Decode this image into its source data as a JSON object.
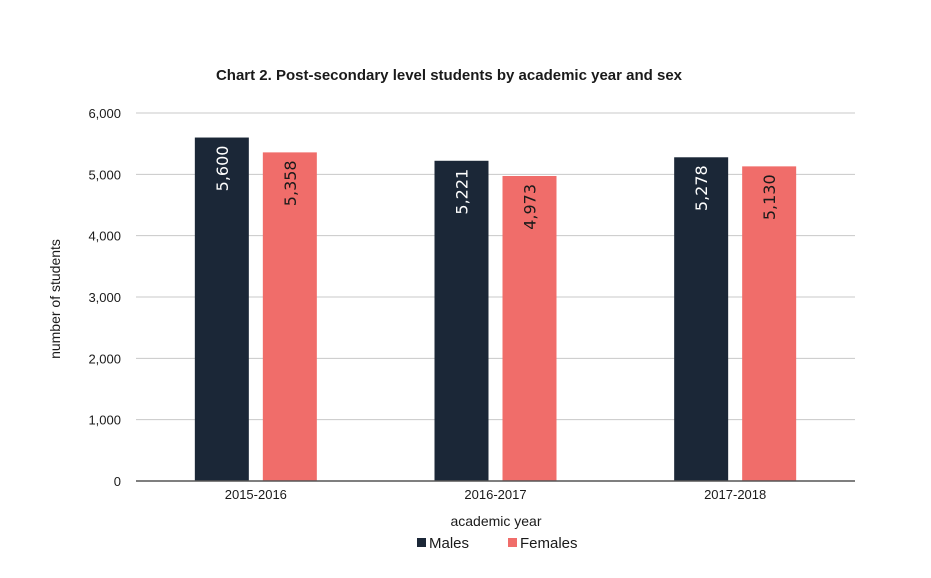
{
  "chart_data": {
    "type": "bar",
    "title": "Chart 2. Post-secondary level students by academic year and sex",
    "xlabel": "academic year",
    "ylabel": "number of students",
    "categories": [
      "2015-2016",
      "2016-2017",
      "2017-2018"
    ],
    "series": [
      {
        "name": "Males",
        "color": "#1b2737",
        "values": [
          5600,
          5221,
          5278
        ],
        "labels": [
          "5,600",
          "5,221",
          "5,278"
        ]
      },
      {
        "name": "Females",
        "color": "#f06d6a",
        "values": [
          5358,
          4973,
          5130
        ],
        "labels": [
          "5,358",
          "4,973",
          "5,130"
        ]
      }
    ],
    "ylim": [
      0,
      6000
    ],
    "yticks": [
      0,
      1000,
      2000,
      3000,
      4000,
      5000,
      6000
    ],
    "ytick_labels": [
      "0",
      "1,000",
      "2,000",
      "3,000",
      "4,000",
      "5,000",
      "6,000"
    ],
    "grid": true,
    "legend": "bottom-center"
  }
}
